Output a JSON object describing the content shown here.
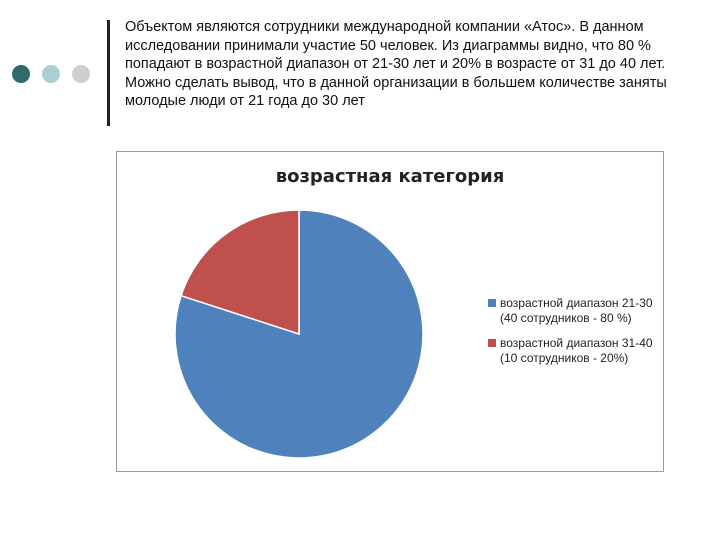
{
  "colors": {
    "dot1": "#2f6b6b",
    "dot2": "#a8cfd2",
    "dot3": "#cfcfcf"
  },
  "intro_text": "Объектом являются сотрудники международной компании «Атос». В данном исследовании принимали участие 50 человек. Из диаграммы видно, что 80 % попадают в возрастной диапазон от 21-30 лет и 20% в возрасте от 31 до 40 лет. Можно сделать вывод, что в данной организации в большем количестве заняты молодые люди от 21 года до 30 лет",
  "chart_data": {
    "type": "pie",
    "title": "возрастная  категория",
    "legend_position": "right",
    "series": [
      {
        "label_line1": "возрастной диапазон 21-30",
        "label_line2": "(40 сотрудников - 80 %)",
        "value": 80,
        "color": "#4f81bd"
      },
      {
        "label_line1": "возрастной диапазон 31-40",
        "label_line2": "(10 сотрудников - 20%)",
        "value": 20,
        "color": "#c0504d"
      }
    ]
  }
}
